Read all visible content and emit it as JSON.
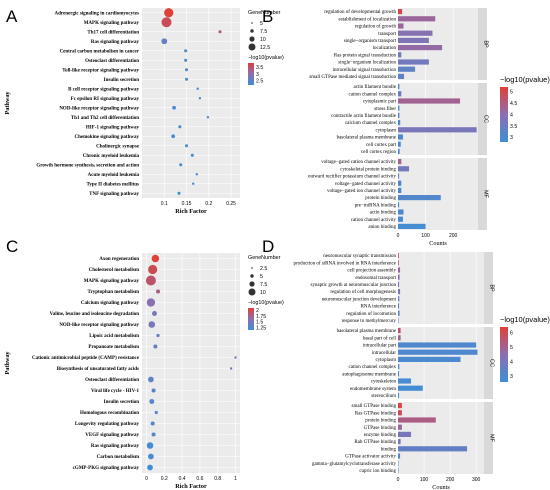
{
  "colors": {
    "low": "#3f8fd6",
    "high": "#e0403a",
    "panel_bg": "#ebebeb",
    "grid": "#ffffff",
    "strip": "#d9d9d9"
  },
  "chart_data": [
    {
      "panel": "A",
      "type": "scatter",
      "xlabel": "Rich Factor",
      "ylabel": "Pathway",
      "xticks": [
        "0.1",
        "0.15",
        "0.2",
        "0.25"
      ],
      "xlim": [
        0.05,
        0.27
      ],
      "size_legend_title": "GeneNumber",
      "size_legend": [
        5,
        7.5,
        10,
        12.5
      ],
      "size_range": [
        3,
        14
      ],
      "color_legend_title": "−log10(pvalue)",
      "color_ticks": [
        2.5,
        3,
        3.5
      ],
      "color_range": [
        2.2,
        3.8
      ],
      "points": [
        {
          "term": "Adrenergic signaling in cardiomyocytes",
          "x": 0.11,
          "size": 13,
          "color": 3.8
        },
        {
          "term": "MAPK signaling pathway",
          "x": 0.105,
          "size": 14,
          "color": 3.6
        },
        {
          "term": "Th17 cell differentiation",
          "x": 0.225,
          "size": 4,
          "color": 3.4
        },
        {
          "term": "Ras signaling pathway",
          "x": 0.1,
          "size": 8,
          "color": 2.6
        },
        {
          "term": "Central carbon metabolism in cancer",
          "x": 0.148,
          "size": 4,
          "color": 2.4
        },
        {
          "term": "Osteoclast differentiation",
          "x": 0.148,
          "size": 4,
          "color": 2.4
        },
        {
          "term": "Toll-like receptor signaling pathway",
          "x": 0.15,
          "size": 4,
          "color": 2.4
        },
        {
          "term": "Insulin secretion",
          "x": 0.15,
          "size": 4,
          "color": 2.4
        },
        {
          "term": "B cell receptor signaling pathway",
          "x": 0.175,
          "size": 3,
          "color": 2.4
        },
        {
          "term": "Fc epsilon RI signaling pathway",
          "x": 0.18,
          "size": 3,
          "color": 2.4
        },
        {
          "term": "NOD-like receptor signaling pathway",
          "x": 0.122,
          "size": 5,
          "color": 2.3
        },
        {
          "term": "Th1 and Th2 cell differentiation",
          "x": 0.198,
          "size": 3,
          "color": 2.4
        },
        {
          "term": "HIF-1 signaling pathway",
          "x": 0.135,
          "size": 4,
          "color": 2.3
        },
        {
          "term": "Chemokine signaling pathway",
          "x": 0.12,
          "size": 5,
          "color": 2.3
        },
        {
          "term": "Cholinergic synapse",
          "x": 0.15,
          "size": 4,
          "color": 2.3
        },
        {
          "term": "Chronic myeloid leukemia",
          "x": 0.163,
          "size": 4,
          "color": 2.3
        },
        {
          "term": "Growth hormone synthesis, secretion and action",
          "x": 0.137,
          "size": 4,
          "color": 2.3
        },
        {
          "term": "Acute myeloid leukemia",
          "x": 0.173,
          "size": 3,
          "color": 2.3
        },
        {
          "term": "Type II diabetes mellitus",
          "x": 0.165,
          "size": 3,
          "color": 2.3
        },
        {
          "term": "TNF signaling pathway",
          "x": 0.133,
          "size": 4,
          "color": 2.2
        }
      ]
    },
    {
      "panel": "B",
      "type": "bar",
      "xlabel": "Counts",
      "xticks": [
        "0",
        "100",
        "200"
      ],
      "xlim": [
        0,
        290
      ],
      "color_legend_title": "−log10(pvalue)",
      "color_ticks": [
        3.0,
        3.5,
        4.0,
        4.5,
        5.0
      ],
      "color_range": [
        2.8,
        5.2
      ],
      "groups": [
        {
          "name": "BP",
          "bars": [
            {
              "term": "regulation of developmental growth",
              "value": 15,
              "color": 5.0
            },
            {
              "term": "establishment of localization",
              "value": 135,
              "color": 4.2
            },
            {
              "term": "regulation of growth",
              "value": 20,
              "color": 4.2
            },
            {
              "term": "transport",
              "value": 125,
              "color": 3.9
            },
            {
              "term": "single−organism transport",
              "value": 112,
              "color": 3.8
            },
            {
              "term": "localization",
              "value": 160,
              "color": 4.1
            },
            {
              "term": "Ras protein signal transduction",
              "value": 12,
              "color": 3.5
            },
            {
              "term": "single−organism localization",
              "value": 112,
              "color": 3.6
            },
            {
              "term": "intracellular signal transduction",
              "value": 62,
              "color": 3.3
            },
            {
              "term": "small GTPase mediated signal transduction",
              "value": 22,
              "color": 3.3
            }
          ]
        },
        {
          "name": "CC",
          "bars": [
            {
              "term": "actin filament bundle",
              "value": 5,
              "color": 3.2
            },
            {
              "term": "cation channel complex",
              "value": 12,
              "color": 3.5
            },
            {
              "term": "cytoplasmic part",
              "value": 225,
              "color": 4.3
            },
            {
              "term": "stress fiber",
              "value": 5,
              "color": 3.0
            },
            {
              "term": "contractile actin filament bundle",
              "value": 5,
              "color": 3.0
            },
            {
              "term": "calcium channel complex",
              "value": 8,
              "color": 3.0
            },
            {
              "term": "cytoplasm",
              "value": 285,
              "color": 3.7
            },
            {
              "term": "basolateral plasma membrane",
              "value": 18,
              "color": 3.0
            },
            {
              "term": "cell cortex part",
              "value": 10,
              "color": 3.0
            },
            {
              "term": "cell cortex region",
              "value": 6,
              "color": 3.0
            }
          ]
        },
        {
          "name": "MF",
          "bars": [
            {
              "term": "voltage−gated cation channel activity",
              "value": 12,
              "color": 4.3
            },
            {
              "term": "cytoskeletal protein binding",
              "value": 40,
              "color": 3.6
            },
            {
              "term": "outward rectifier potassium channel activity",
              "value": 4,
              "color": 3.3
            },
            {
              "term": "voltage−gated channel activity",
              "value": 12,
              "color": 3.0
            },
            {
              "term": "voltage−gated ion channel activity",
              "value": 12,
              "color": 3.0
            },
            {
              "term": "protein binding",
              "value": 155,
              "color": 3.1
            },
            {
              "term": "pre−miRNA binding",
              "value": 4,
              "color": 3.0
            },
            {
              "term": "actin binding",
              "value": 20,
              "color": 3.0
            },
            {
              "term": "cation channel activity",
              "value": 18,
              "color": 2.9
            },
            {
              "term": "anion binding",
              "value": 100,
              "color": 2.9
            }
          ]
        }
      ]
    },
    {
      "panel": "C",
      "type": "scatter",
      "xlabel": "Rich Factor",
      "ylabel": "Pathway",
      "xticks": [
        "0",
        "0.2",
        "0.4",
        "0.6",
        "0.8",
        "1"
      ],
      "xlim": [
        -0.05,
        1.05
      ],
      "size_legend_title": "GeneNumber",
      "size_legend": [
        2.5,
        5,
        7.5,
        10
      ],
      "size_range": [
        2,
        11
      ],
      "color_legend_title": "−log10(pvalue)",
      "color_ticks": [
        1.25,
        1.5,
        1.75,
        2
      ],
      "color_range": [
        1.15,
        2.1
      ],
      "points": [
        {
          "term": "Axon regeneration",
          "x": 0.1,
          "size": 8,
          "color": 2.1
        },
        {
          "term": "Cholesterol metabolism",
          "x": 0.07,
          "size": 10,
          "color": 2.0
        },
        {
          "term": "MAPK signaling pathway",
          "x": 0.05,
          "size": 11,
          "color": 1.9
        },
        {
          "term": "Tryptophan metabolism",
          "x": 0.13,
          "size": 4,
          "color": 1.8
        },
        {
          "term": "Calcium signaling pathway",
          "x": 0.05,
          "size": 9,
          "color": 1.6
        },
        {
          "term": "Valine, leucine and isoleucine degradation",
          "x": 0.09,
          "size": 5,
          "color": 1.5
        },
        {
          "term": "NOD-like receptor signaling pathway",
          "x": 0.06,
          "size": 7,
          "color": 1.5
        },
        {
          "term": "Lipoic acid metabolism",
          "x": 0.13,
          "size": 3,
          "color": 1.4
        },
        {
          "term": "Propanoate metabolism",
          "x": 0.1,
          "size": 4,
          "color": 1.4
        },
        {
          "term": "Cationic antimicrobial peptide (CAMP) resistance",
          "x": 1.0,
          "size": 2,
          "color": 1.45
        },
        {
          "term": "Biosynthesis of unsaturated fatty acids",
          "x": 0.95,
          "size": 2,
          "color": 1.45
        },
        {
          "term": "Osteoclast differentiation",
          "x": 0.05,
          "size": 6,
          "color": 1.35
        },
        {
          "term": "Viral life cycle - HIV-1",
          "x": 0.08,
          "size": 4,
          "color": 1.3
        },
        {
          "term": "Insulin secretion",
          "x": 0.06,
          "size": 5,
          "color": 1.3
        },
        {
          "term": "Homologous recombination",
          "x": 0.11,
          "size": 3,
          "color": 1.3
        },
        {
          "term": "Longevity regulating pathway",
          "x": 0.07,
          "size": 4,
          "color": 1.25
        },
        {
          "term": "VEGF signaling pathway",
          "x": 0.08,
          "size": 4,
          "color": 1.25
        },
        {
          "term": "Ras signaling pathway",
          "x": 0.04,
          "size": 7,
          "color": 1.2
        },
        {
          "term": "Carbon metabolism",
          "x": 0.05,
          "size": 6,
          "color": 1.2
        },
        {
          "term": "cGMP-PKG signaling pathway",
          "x": 0.04,
          "size": 6,
          "color": 1.15
        }
      ]
    },
    {
      "panel": "D",
      "type": "bar",
      "xlabel": "Counts",
      "xticks": [
        "0",
        "100",
        "200",
        "300"
      ],
      "xlim": [
        0,
        330
      ],
      "color_legend_title": "−log10(pvalue)",
      "color_ticks": [
        3,
        4,
        5,
        6
      ],
      "color_range": [
        2.6,
        6.4
      ],
      "groups": [
        {
          "name": "BP",
          "bars": [
            {
              "term": "neuronuscular synaptic transmission",
              "value": 3,
              "color": 5.8
            },
            {
              "term": "production of siRNA involved in RNA interference",
              "value": 3,
              "color": 5.5
            },
            {
              "term": "cell projection assembly",
              "value": 8,
              "color": 4.8
            },
            {
              "term": "endosomal transport",
              "value": 6,
              "color": 4.5
            },
            {
              "term": "synaptic growth at neuromuscular junction",
              "value": 4,
              "color": 4.2
            },
            {
              "term": "regulation of cell morphogenesis",
              "value": 8,
              "color": 4.0
            },
            {
              "term": "neuromuscular junction development",
              "value": 5,
              "color": 3.8
            },
            {
              "term": "RNA interference",
              "value": 4,
              "color": 3.5
            },
            {
              "term": "regulation of locomotion",
              "value": 6,
              "color": 3.3
            },
            {
              "term": "response to methylmercury",
              "value": 2,
              "color": 3.0
            }
          ]
        },
        {
          "name": "CC",
          "bars": [
            {
              "term": "basolateral plasma membrane",
              "value": 10,
              "color": 5.5
            },
            {
              "term": "basal part of cell",
              "value": 10,
              "color": 5.0
            },
            {
              "term": "intracellular part",
              "value": 300,
              "color": 3.0
            },
            {
              "term": "intracellular",
              "value": 305,
              "color": 3.0
            },
            {
              "term": "cytoplasm",
              "value": 240,
              "color": 2.9
            },
            {
              "term": "cation channel complex",
              "value": 5,
              "color": 2.9
            },
            {
              "term": "autophagosome membrane",
              "value": 4,
              "color": 2.8
            },
            {
              "term": "cytoskeleton",
              "value": 50,
              "color": 2.8
            },
            {
              "term": "endomembrane system",
              "value": 95,
              "color": 2.7
            },
            {
              "term": "stereocilium",
              "value": 4,
              "color": 2.7
            }
          ]
        },
        {
          "name": "MF",
          "bars": [
            {
              "term": "small GTPase binding",
              "value": 15,
              "color": 6.2
            },
            {
              "term": "Ras GTPase binding",
              "value": 15,
              "color": 6.0
            },
            {
              "term": "protein binding",
              "value": 145,
              "color": 5.2
            },
            {
              "term": "GTPase binding",
              "value": 15,
              "color": 4.8
            },
            {
              "term": "enzyme binding",
              "value": 50,
              "color": 4.0
            },
            {
              "term": "Rab GTPase binding",
              "value": 10,
              "color": 3.8
            },
            {
              "term": "binding",
              "value": 265,
              "color": 3.5
            },
            {
              "term": "GTPase activator activity",
              "value": 8,
              "color": 3.2
            },
            {
              "term": "gamma−glutamylcyclotransferase activity",
              "value": 2,
              "color": 3.0
            },
            {
              "term": "cupric ion binding",
              "value": 2,
              "color": 2.9
            }
          ]
        }
      ]
    }
  ]
}
